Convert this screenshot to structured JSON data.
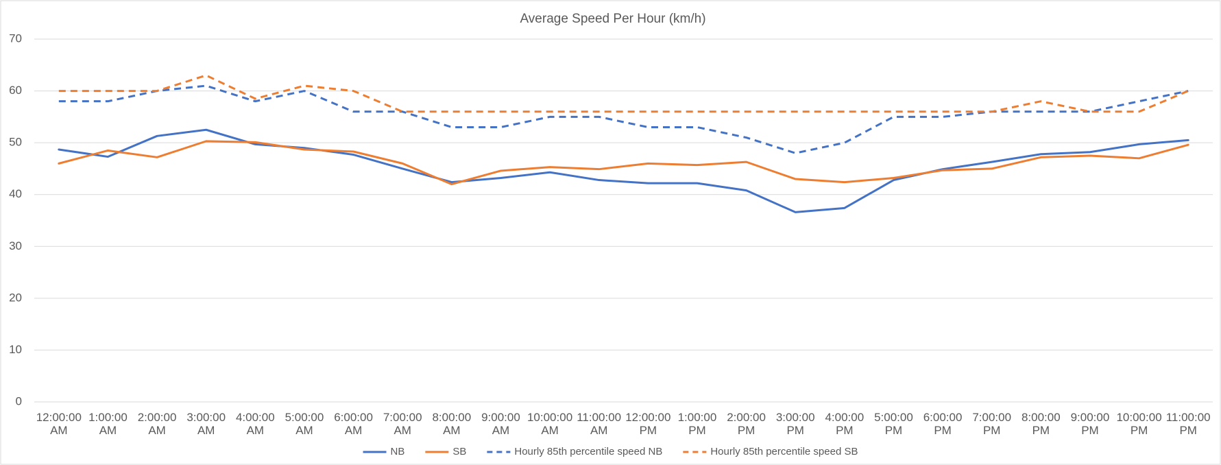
{
  "chart_data": {
    "type": "line",
    "title": "Average Speed Per Hour (km/h)",
    "categories": [
      "12:00:00 AM",
      "1:00:00 AM",
      "2:00:00 AM",
      "3:00:00 AM",
      "4:00:00 AM",
      "5:00:00 AM",
      "6:00:00 AM",
      "7:00:00 AM",
      "8:00:00 AM",
      "9:00:00 AM",
      "10:00:00 AM",
      "11:00:00 AM",
      "12:00:00 PM",
      "1:00:00 PM",
      "2:00:00 PM",
      "3:00:00 PM",
      "4:00:00 PM",
      "5:00:00 PM",
      "6:00:00 PM",
      "7:00:00 PM",
      "8:00:00 PM",
      "9:00:00 PM",
      "10:00:00 PM",
      "11:00:00 PM"
    ],
    "series": [
      {
        "name": "NB",
        "color": "#4472c4",
        "dashed": false,
        "values": [
          48.7,
          47.3,
          51.3,
          52.5,
          49.7,
          49.0,
          47.7,
          45.0,
          42.4,
          43.2,
          44.3,
          42.8,
          42.2,
          42.2,
          40.8,
          36.6,
          37.4,
          42.8,
          44.9,
          46.3,
          47.8,
          48.2,
          49.7,
          50.5
        ]
      },
      {
        "name": "SB",
        "color": "#ed7d31",
        "dashed": false,
        "values": [
          46.0,
          48.5,
          47.2,
          50.3,
          50.1,
          48.7,
          48.3,
          46.0,
          42.0,
          44.6,
          45.3,
          44.9,
          46.0,
          45.7,
          46.3,
          43.0,
          42.4,
          43.2,
          44.7,
          45.0,
          47.2,
          47.5,
          47.0,
          49.6
        ]
      },
      {
        "name": "Hourly 85th percentile speed NB",
        "color": "#4472c4",
        "dashed": true,
        "values": [
          58,
          58,
          60,
          61,
          58,
          60,
          56,
          56,
          53,
          53,
          55,
          55,
          53,
          53,
          51,
          48,
          50,
          55,
          55,
          56,
          56,
          56,
          58,
          60
        ]
      },
      {
        "name": "Hourly 85th percentile speed SB",
        "color": "#ed7d31",
        "dashed": true,
        "values": [
          60,
          60,
          60,
          63,
          58.5,
          61,
          60,
          56,
          56,
          56,
          56,
          56,
          56,
          56,
          56,
          56,
          56,
          56,
          56,
          56,
          58,
          56,
          56,
          60
        ]
      }
    ],
    "ylim": [
      0,
      70
    ],
    "yticks": [
      0,
      10,
      20,
      30,
      40,
      50,
      60,
      70
    ],
    "grid": true,
    "legend": "bottom"
  }
}
